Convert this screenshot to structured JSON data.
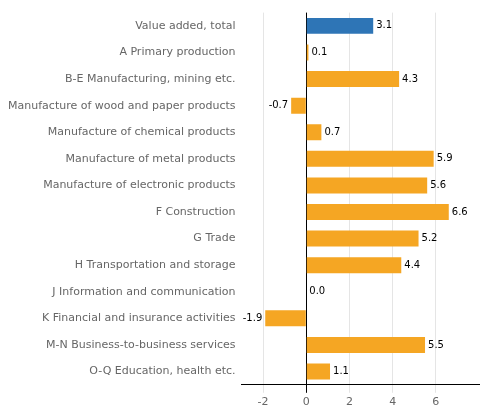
{
  "chart_data": {
    "type": "bar",
    "orientation": "horizontal",
    "categories": [
      "O-Q Education, health etc.",
      "M-N Business-to-business services",
      "K Financial and insurance activities",
      "J Information and communication",
      "H Transportation and storage",
      "G Trade",
      "F Construction",
      "Manufacture of electronic products",
      "Manufacture of metal products",
      "Manufacture of chemical products",
      "Manufacture of wood and paper products",
      "B-E Manufacturing, mining etc.",
      "A Primary production",
      "Value added, total"
    ],
    "values": [
      1.1,
      5.5,
      -1.9,
      0.0,
      4.4,
      5.2,
      6.6,
      5.6,
      5.9,
      0.7,
      -0.7,
      4.3,
      0.1,
      3.1
    ],
    "value_labels": [
      "1.1",
      "5.5",
      "-1.9",
      "0.0",
      "4.4",
      "5.2",
      "6.6",
      "5.6",
      "5.9",
      "0.7",
      "-0.7",
      "4.3",
      "0.1",
      "3.1"
    ],
    "colors": [
      "#f5a623",
      "#f5a623",
      "#f5a623",
      "#f5a623",
      "#f5a623",
      "#f5a623",
      "#f5a623",
      "#f5a623",
      "#f5a623",
      "#f5a623",
      "#f5a623",
      "#f5a623",
      "#f5a623",
      "#2e75b6"
    ],
    "xlim": [
      -3,
      8
    ],
    "xticks": [
      -2,
      0,
      2,
      4,
      6
    ],
    "grid": true,
    "data_labels": true
  }
}
